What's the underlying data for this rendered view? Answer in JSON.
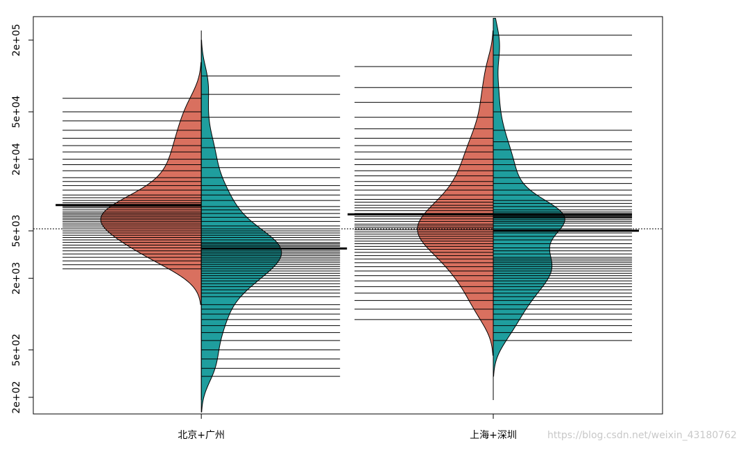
{
  "chart_data": {
    "type": "beanplot",
    "categories": [
      "北京+广州",
      "上海+深圳"
    ],
    "log_y": true,
    "ylim": [
      145,
      315000
    ],
    "yticks": [
      {
        "value": 200,
        "label": "2e+02"
      },
      {
        "value": 500,
        "label": "5e+02"
      },
      {
        "value": 2000,
        "label": "2e+03"
      },
      {
        "value": 5000,
        "label": "5e+03"
      },
      {
        "value": 20000,
        "label": "2e+04"
      },
      {
        "value": 50000,
        "label": "5e+04"
      },
      {
        "value": 200000,
        "label": "2e+05"
      }
    ],
    "overall_mean": 5200,
    "series": [
      {
        "color": "#d9705f",
        "values": [
          [
            2400,
            2600,
            2800,
            3000,
            3200,
            3400,
            3600,
            3800,
            4000,
            4200,
            4400,
            4600,
            4800,
            5000,
            5200,
            5400,
            5600,
            5800,
            6000,
            6200,
            6400,
            6600,
            6800,
            7000,
            7200,
            7500,
            7800,
            8000,
            8300,
            8600,
            9000,
            9500,
            10000,
            11000,
            12000,
            13000,
            14000,
            16000,
            18000,
            20000,
            23000,
            26000,
            30000,
            35000,
            42000,
            50000,
            65000
          ],
          [
            900,
            1100,
            1300,
            1500,
            1700,
            1900,
            2100,
            2300,
            2500,
            2700,
            2900,
            3100,
            3300,
            3500,
            3700,
            3900,
            4100,
            4300,
            4500,
            4700,
            4900,
            5100,
            5300,
            5500,
            5700,
            6000,
            6300,
            6600,
            7000,
            7400,
            7800,
            8200,
            8700,
            9200,
            10000,
            11000,
            12000,
            13000,
            14500,
            16000,
            18000,
            20000,
            23000,
            26000,
            30000,
            36000,
            45000,
            60000,
            80000,
            120000
          ]
        ]
      },
      {
        "color": "#1f9e9e",
        "values": [
          [
            300,
            350,
            420,
            500,
            600,
            700,
            800,
            900,
            1000,
            1100,
            1200,
            1400,
            1500,
            1600,
            1700,
            1800,
            1900,
            2000,
            2100,
            2200,
            2300,
            2400,
            2500,
            2600,
            2700,
            2800,
            2900,
            3000,
            3100,
            3200,
            3300,
            3400,
            3500,
            3600,
            3700,
            3800,
            3900,
            4000,
            4200,
            4400,
            4600,
            4800,
            5000,
            5200,
            5500,
            6000,
            6500,
            7000,
            7500,
            8000,
            9000,
            10000,
            11000,
            12000,
            14000,
            17000,
            20000,
            25000,
            30000,
            45000,
            70000,
            100000
          ],
          [
            600,
            700,
            800,
            900,
            1000,
            1100,
            1200,
            1300,
            1400,
            1500,
            1600,
            1700,
            1800,
            1900,
            2000,
            2100,
            2200,
            2300,
            2400,
            2500,
            2600,
            2700,
            2800,
            2900,
            3000,
            3200,
            3400,
            3600,
            3900,
            4200,
            4500,
            4800,
            5000,
            5200,
            5500,
            5800,
            6000,
            6200,
            6400,
            6500,
            6600,
            6700,
            6800,
            6900,
            7000,
            7200,
            7500,
            8000,
            8500,
            9000,
            10000,
            11000,
            12500,
            14000,
            16000,
            18000,
            20000,
            24000,
            28000,
            35000,
            50000,
            80000,
            150000,
            220000
          ]
        ]
      }
    ],
    "watermark": "https://blog.csdn.net/weixin_43180762"
  }
}
